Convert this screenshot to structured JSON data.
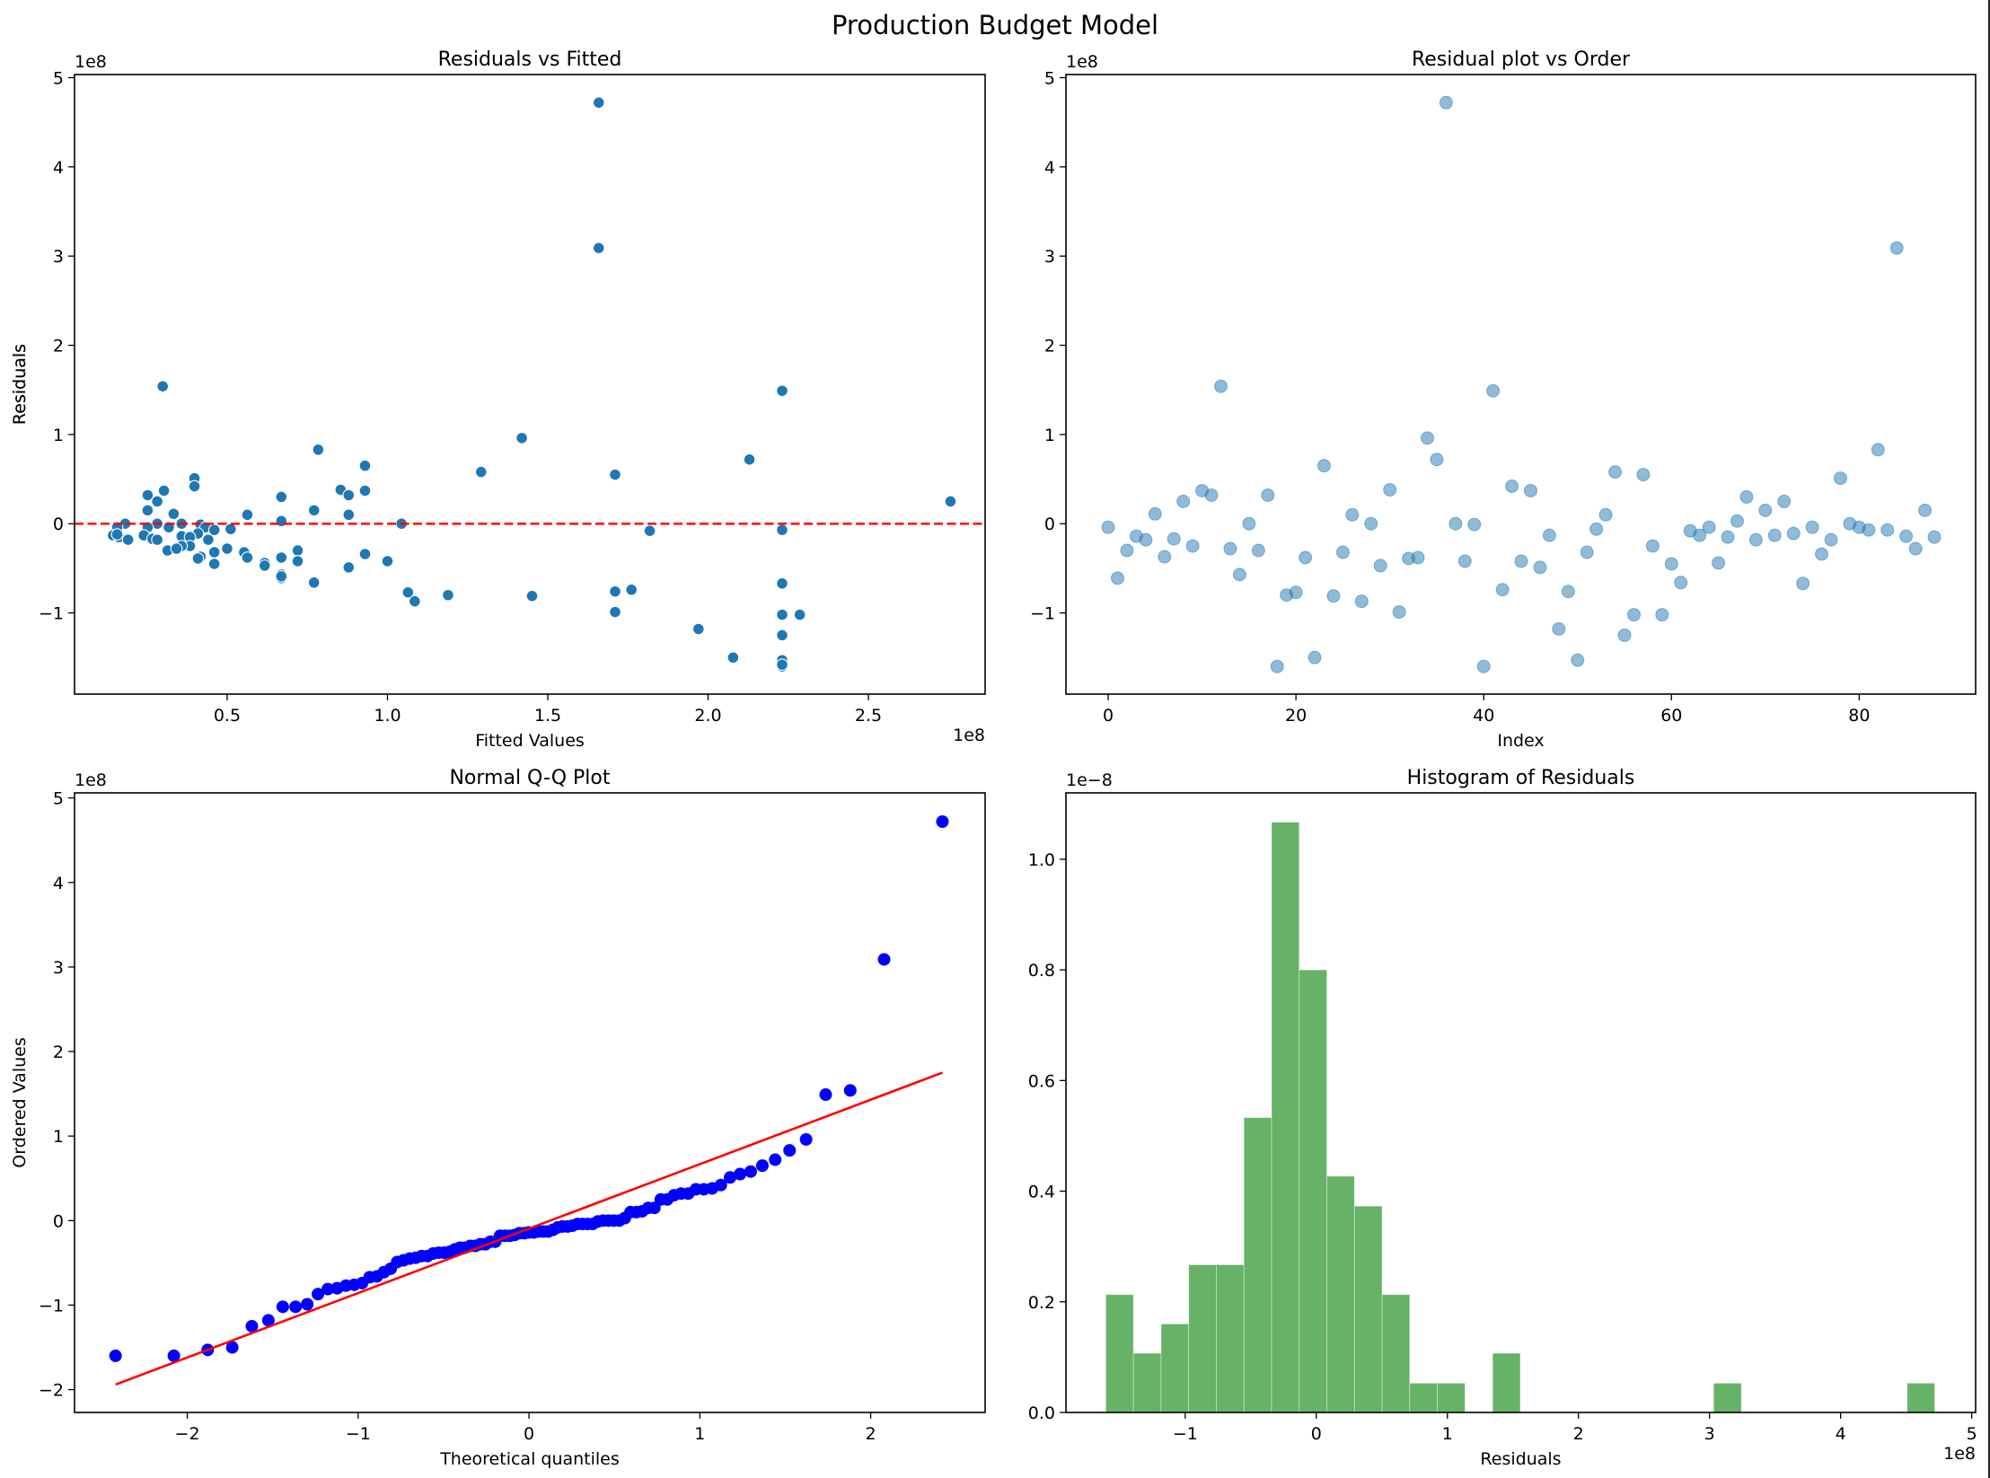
{
  "figure": {
    "suptitle": "Production Budget Model"
  },
  "chart_data": [
    {
      "id": "resid_fitted",
      "type": "scatter",
      "title": "Residuals vs Fitted",
      "xlabel": "Fitted Values",
      "ylabel": "Residuals",
      "x_offset_label": "1e8",
      "y_offset_label": "1e8",
      "xlim": [
        0.024,
        2.864
      ],
      "ylim": [
        -1.91,
        5.035
      ],
      "xticks": [
        0.5,
        1.0,
        1.5,
        2.0,
        2.5
      ],
      "xtick_labels": [
        "0.5",
        "1.0",
        "1.5",
        "2.0",
        "2.5"
      ],
      "yticks": [
        -1,
        0,
        1,
        2,
        3,
        4,
        5
      ],
      "ytick_labels": [
        "−1",
        "0",
        "1",
        "2",
        "3",
        "4",
        "5"
      ],
      "units": "1e8",
      "marker_color": "#1f77b4",
      "reference_line": {
        "y": 0,
        "color": "#ff0000",
        "style": "dashed"
      },
      "points": [
        [
          1.659,
          4.72
        ],
        [
          1.659,
          3.09
        ],
        [
          0.299,
          1.54
        ],
        [
          2.231,
          1.49
        ],
        [
          1.419,
          0.96
        ],
        [
          0.784,
          0.83
        ],
        [
          2.129,
          0.72
        ],
        [
          0.93,
          0.65
        ],
        [
          1.292,
          0.58
        ],
        [
          1.71,
          0.55
        ],
        [
          0.398,
          0.51
        ],
        [
          0.398,
          0.42
        ],
        [
          0.854,
          0.38
        ],
        [
          0.303,
          0.37
        ],
        [
          0.93,
          0.37
        ],
        [
          0.252,
          0.32
        ],
        [
          0.879,
          0.32
        ],
        [
          0.669,
          0.3
        ],
        [
          0.282,
          0.25
        ],
        [
          2.756,
          0.25
        ],
        [
          0.252,
          0.15
        ],
        [
          0.771,
          0.15
        ],
        [
          0.333,
          0.11
        ],
        [
          0.563,
          0.1
        ],
        [
          0.879,
          0.1
        ],
        [
          0.669,
          0.03
        ],
        [
          0.182,
          0.0
        ],
        [
          0.282,
          0.0
        ],
        [
          0.358,
          0.0
        ],
        [
          1.044,
          0.0
        ],
        [
          0.417,
          -0.01
        ],
        [
          0.157,
          -0.04
        ],
        [
          0.252,
          -0.04
        ],
        [
          0.318,
          -0.04
        ],
        [
          0.432,
          -0.04
        ],
        [
          0.511,
          -0.06
        ],
        [
          0.46,
          -0.07
        ],
        [
          2.231,
          -0.07
        ],
        [
          1.818,
          -0.08
        ],
        [
          0.409,
          -0.11
        ],
        [
          0.144,
          -0.13
        ],
        [
          0.24,
          -0.13
        ],
        [
          0.358,
          -0.14
        ],
        [
          0.384,
          -0.15
        ],
        [
          0.163,
          -0.15
        ],
        [
          0.267,
          -0.17
        ],
        [
          0.282,
          -0.18
        ],
        [
          0.441,
          -0.18
        ],
        [
          0.191,
          -0.18
        ],
        [
          0.384,
          -0.25
        ],
        [
          0.358,
          -0.25
        ],
        [
          0.5,
          -0.28
        ],
        [
          0.72,
          -0.3
        ],
        [
          0.314,
          -0.3
        ],
        [
          0.342,
          -0.28
        ],
        [
          0.553,
          -0.32
        ],
        [
          0.46,
          -0.32
        ],
        [
          0.93,
          -0.34
        ],
        [
          0.417,
          -0.37
        ],
        [
          0.563,
          -0.38
        ],
        [
          0.669,
          -0.38
        ],
        [
          0.409,
          -0.39
        ],
        [
          0.72,
          -0.42
        ],
        [
          1.0,
          -0.42
        ],
        [
          0.617,
          -0.44
        ],
        [
          0.46,
          -0.45
        ],
        [
          0.879,
          -0.49
        ],
        [
          0.617,
          -0.47
        ],
        [
          0.669,
          -0.57
        ],
        [
          0.669,
          -0.61
        ],
        [
          0.771,
          -0.66
        ],
        [
          2.231,
          -0.67
        ],
        [
          1.761,
          -0.74
        ],
        [
          1.71,
          -0.76
        ],
        [
          1.064,
          -0.77
        ],
        [
          1.189,
          -0.8
        ],
        [
          1.451,
          -0.81
        ],
        [
          1.085,
          -0.87
        ],
        [
          1.71,
          -0.99
        ],
        [
          2.231,
          -1.02
        ],
        [
          2.286,
          -1.02
        ],
        [
          1.97,
          -1.18
        ],
        [
          2.231,
          -1.25
        ],
        [
          2.078,
          -1.5
        ],
        [
          2.231,
          -1.53
        ],
        [
          2.231,
          -1.6
        ],
        [
          2.231,
          -1.58
        ],
        [
          0.669,
          -0.59
        ],
        [
          0.157,
          -0.12
        ]
      ]
    },
    {
      "id": "resid_order",
      "type": "scatter",
      "title": "Residual plot vs Order",
      "xlabel": "Index",
      "ylabel": "Residuals",
      "y_offset_label": "1e8",
      "xlim": [
        -4.5,
        92.4
      ],
      "ylim": [
        -1.91,
        5.035
      ],
      "xticks": [
        0,
        20,
        40,
        60,
        80
      ],
      "xtick_labels": [
        "0",
        "20",
        "40",
        "60",
        "80"
      ],
      "yticks": [
        -1,
        0,
        1,
        2,
        3,
        4,
        5
      ],
      "ytick_labels": [
        "−1",
        "0",
        "1",
        "2",
        "3",
        "4",
        "5"
      ],
      "units": "1e8",
      "marker_color": "#1f77b4",
      "marker_alpha": 0.5,
      "residuals": [
        -0.04,
        -0.61,
        -0.3,
        -0.14,
        -0.18,
        0.11,
        -0.37,
        -0.17,
        0.25,
        -0.25,
        0.37,
        0.32,
        1.54,
        -0.28,
        -0.57,
        0.0,
        -0.3,
        0.32,
        -1.6,
        -0.8,
        -0.77,
        -0.38,
        -1.5,
        0.65,
        -0.81,
        -0.32,
        0.1,
        -0.87,
        0.0,
        -0.47,
        0.38,
        -0.99,
        -0.39,
        -0.38,
        0.96,
        0.72,
        4.72,
        0.0,
        -0.42,
        -0.01,
        -1.6,
        1.49,
        -0.74,
        0.42,
        -0.42,
        0.37,
        -0.49,
        -0.13,
        -1.18,
        -0.76,
        -1.53,
        -0.32,
        -0.06,
        0.1,
        0.58,
        -1.25,
        -1.02,
        0.55,
        -0.25,
        -1.02,
        -0.45,
        -0.66,
        -0.08,
        -0.13,
        -0.04,
        -0.44,
        -0.15,
        0.03,
        0.3,
        -0.18,
        0.15,
        -0.13,
        0.25,
        -0.11,
        -0.67,
        -0.04,
        -0.34,
        -0.18,
        0.51,
        0.0,
        -0.04,
        -0.07,
        0.83,
        -0.07,
        3.09,
        -0.14,
        -0.28,
        0.15,
        -0.15
      ]
    },
    {
      "id": "qq",
      "type": "scatter",
      "title": "Normal Q-Q Plot",
      "xlabel": "Theoretical quantiles",
      "ylabel": "Ordered Values",
      "y_offset_label": "1e8",
      "xlim": [
        -2.66,
        2.67
      ],
      "ylim": [
        -2.27,
        5.06
      ],
      "xticks": [
        -2,
        -1,
        0,
        1,
        2
      ],
      "xtick_labels": [
        "−2",
        "−1",
        "0",
        "1",
        "2"
      ],
      "yticks": [
        -2,
        -1,
        0,
        1,
        2,
        3,
        4,
        5
      ],
      "ytick_labels": [
        "−2",
        "−1",
        "0",
        "1",
        "2",
        "3",
        "4",
        "5"
      ],
      "units": "1e8",
      "marker_color": "#0000ff",
      "ordered_values_source": "resid_order.residuals (sorted)",
      "fit_line": {
        "x": [
          -2.42,
          2.42
        ],
        "y": [
          -1.94,
          1.75
        ],
        "color": "#ff0000"
      }
    },
    {
      "id": "hist",
      "type": "bar",
      "title": "Histogram of Residuals",
      "xlabel": "Residuals",
      "x_offset_label": "1e8",
      "y_offset_label": "1e−8",
      "xlim": [
        -1.91,
        5.03
      ],
      "ylim": [
        0,
        1.12
      ],
      "xticks": [
        -1,
        0,
        1,
        2,
        3,
        4,
        5
      ],
      "xtick_labels": [
        "−1",
        "0",
        "1",
        "2",
        "3",
        "4",
        "5"
      ],
      "yticks": [
        0,
        0.2,
        0.4,
        0.6,
        0.8,
        1.0
      ],
      "ytick_labels": [
        "0.0",
        "0.2",
        "0.4",
        "0.6",
        "0.8",
        "1.0"
      ],
      "bar_color": "#66b266",
      "bins": 30,
      "bin_range": [
        -1.606,
        4.718
      ],
      "density_units": "1e-8",
      "counts": [
        4,
        2,
        3,
        5,
        5,
        10,
        20,
        15,
        8,
        7,
        4,
        1,
        1,
        0,
        2,
        0,
        0,
        0,
        0,
        0,
        0,
        0,
        1,
        0,
        0,
        0,
        0,
        0,
        0,
        1
      ],
      "densities": [
        0.213,
        0.107,
        0.16,
        0.267,
        0.267,
        0.533,
        1.067,
        0.8,
        0.427,
        0.373,
        0.213,
        0.053,
        0.053,
        0,
        0.107,
        0,
        0,
        0,
        0,
        0,
        0,
        0,
        0.053,
        0,
        0,
        0,
        0,
        0,
        0,
        0.053
      ]
    }
  ]
}
